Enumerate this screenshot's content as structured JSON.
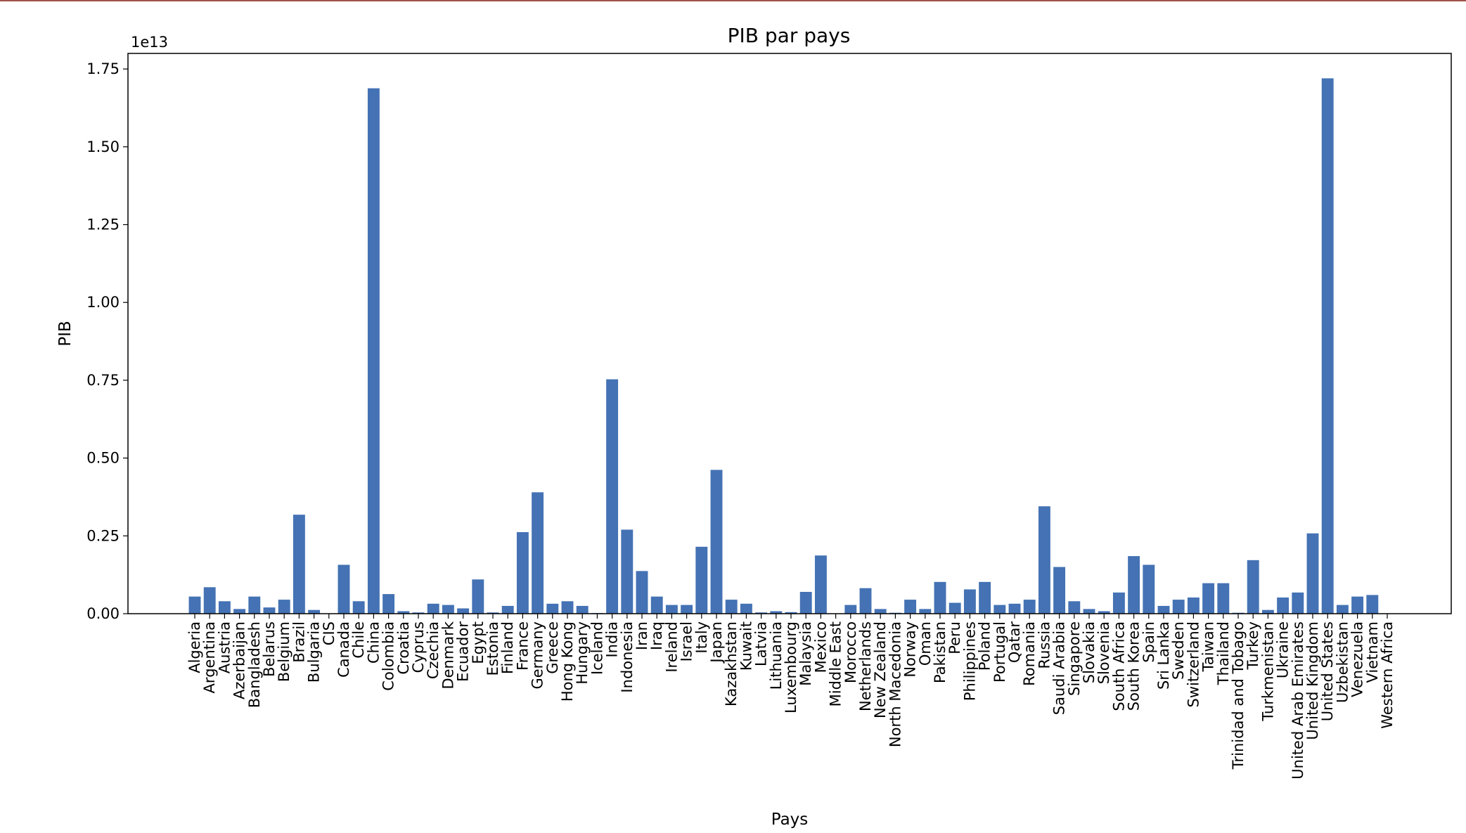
{
  "chart_data": {
    "type": "bar",
    "title": "PIB par pays",
    "xlabel": "Pays",
    "ylabel": "PIB",
    "offset_label": "1e13",
    "y_scale_factor": 10000000000000.0,
    "ylim": [
      0,
      1.8
    ],
    "yticks": [
      0,
      0.25,
      0.5,
      0.75,
      1.0,
      1.25,
      1.5,
      1.75
    ],
    "ytick_labels": [
      "0.00",
      "0.25",
      "0.50",
      "0.75",
      "1.00",
      "1.25",
      "1.50",
      "1.75"
    ],
    "grid": false,
    "bar_color": "#4472b4",
    "categories": [
      "Algeria",
      "Argentina",
      "Austria",
      "Azerbaijan",
      "Bangladesh",
      "Belarus",
      "Belgium",
      "Brazil",
      "Bulgaria",
      "CIS",
      "Canada",
      "Chile",
      "China",
      "Colombia",
      "Croatia",
      "Cyprus",
      "Czechia",
      "Denmark",
      "Ecuador",
      "Egypt",
      "Estonia",
      "Finland",
      "France",
      "Germany",
      "Greece",
      "Hong Kong",
      "Hungary",
      "Iceland",
      "India",
      "Indonesia",
      "Iran",
      "Iraq",
      "Ireland",
      "Israel",
      "Italy",
      "Japan",
      "Kazakhstan",
      "Kuwait",
      "Latvia",
      "Lithuania",
      "Luxembourg",
      "Malaysia",
      "Mexico",
      "Middle East",
      "Morocco",
      "Netherlands",
      "New Zealand",
      "North Macedonia",
      "Norway",
      "Oman",
      "Pakistan",
      "Peru",
      "Philippines",
      "Poland",
      "Portugal",
      "Qatar",
      "Romania",
      "Russia",
      "Saudi Arabia",
      "Singapore",
      "Slovakia",
      "Slovenia",
      "South Africa",
      "South Korea",
      "Spain",
      "Sri Lanka",
      "Sweden",
      "Switzerland",
      "Taiwan",
      "Thailand",
      "Trinidad and Tobago",
      "Turkey",
      "Turkmenistan",
      "Ukraine",
      "United Arab Emirates",
      "United Kingdom",
      "United States",
      "Uzbekistan",
      "Venezuela",
      "Vietnam",
      "Western Africa"
    ],
    "values": [
      0.055,
      0.085,
      0.04,
      0.015,
      0.055,
      0.02,
      0.045,
      0.318,
      0.012,
      0.0,
      0.157,
      0.04,
      1.688,
      0.063,
      0.008,
      0.004,
      0.032,
      0.028,
      0.017,
      0.11,
      0.004,
      0.025,
      0.262,
      0.39,
      0.032,
      0.04,
      0.025,
      0.002,
      0.753,
      0.27,
      0.137,
      0.055,
      0.028,
      0.028,
      0.215,
      0.462,
      0.045,
      0.032,
      0.004,
      0.008,
      0.005,
      0.07,
      0.187,
      0.0,
      0.028,
      0.082,
      0.015,
      0.003,
      0.045,
      0.015,
      0.102,
      0.035,
      0.078,
      0.102,
      0.028,
      0.032,
      0.045,
      0.345,
      0.15,
      0.04,
      0.015,
      0.008,
      0.068,
      0.185,
      0.157,
      0.025,
      0.045,
      0.052,
      0.098,
      0.098,
      0.003,
      0.172,
      0.012,
      0.052,
      0.068,
      0.258,
      1.72,
      0.028,
      0.055,
      0.06,
      0.0
    ]
  }
}
